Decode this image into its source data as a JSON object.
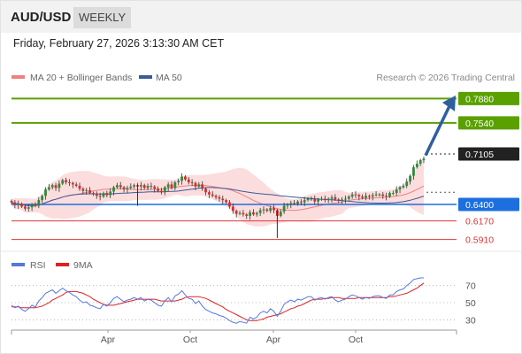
{
  "header": {
    "symbol": "AUD/USD",
    "period": "WEEKLY"
  },
  "datetime": "Friday, February 27, 2026 3:13:30 AM CET",
  "legend": {
    "bollinger_label": "MA 20 + Bollinger Bands",
    "ma50_label": "MA 50",
    "bollinger_color": "#f08080",
    "ma50_color": "#3a5a9a"
  },
  "source": "Research © 2026 Trading Central",
  "rsi_legend": {
    "rsi_label": "RSI",
    "ma_label": "9MA",
    "rsi_color": "#5577dd",
    "ma_color": "#dd2222"
  },
  "chart_data": [
    {
      "type": "candlestick",
      "y_range": [
        0.588,
        0.791
      ],
      "x_tick_labels": [
        "Apr",
        "Oct",
        "Apr",
        "Oct"
      ],
      "close_series": [
        0.643,
        0.639,
        0.641,
        0.637,
        0.634,
        0.636,
        0.64,
        0.638,
        0.646,
        0.652,
        0.661,
        0.664,
        0.667,
        0.663,
        0.669,
        0.674,
        0.671,
        0.67,
        0.668,
        0.666,
        0.662,
        0.659,
        0.66,
        0.656,
        0.655,
        0.652,
        0.651,
        0.656,
        0.653,
        0.658,
        0.664,
        0.667,
        0.664,
        0.661,
        0.663,
        0.665,
        0.667,
        0.665,
        0.667,
        0.663,
        0.666,
        0.665,
        0.662,
        0.659,
        0.657,
        0.664,
        0.668,
        0.663,
        0.671,
        0.673,
        0.679,
        0.675,
        0.671,
        0.67,
        0.665,
        0.668,
        0.662,
        0.657,
        0.654,
        0.652,
        0.65,
        0.648,
        0.646,
        0.643,
        0.637,
        0.631,
        0.627,
        0.628,
        0.626,
        0.624,
        0.629,
        0.626,
        0.628,
        0.632,
        0.633,
        0.631,
        0.635,
        0.632,
        0.624,
        0.63,
        0.638,
        0.64,
        0.642,
        0.641,
        0.644,
        0.643,
        0.646,
        0.648,
        0.648,
        0.644,
        0.647,
        0.648,
        0.646,
        0.648,
        0.65,
        0.647,
        0.645,
        0.647,
        0.648,
        0.651,
        0.654,
        0.653,
        0.651,
        0.649,
        0.652,
        0.651,
        0.653,
        0.654,
        0.654,
        0.652,
        0.651,
        0.656,
        0.656,
        0.661,
        0.664,
        0.666,
        0.672,
        0.68,
        0.692,
        0.697,
        0.702,
        0.704
      ],
      "levels": [
        {
          "label": "0.7880",
          "value": 0.788,
          "kind": "resistance",
          "color": "#5aa000"
        },
        {
          "label": "0.7540",
          "value": 0.754,
          "kind": "resistance",
          "color": "#5aa000"
        },
        {
          "label": "0.7105",
          "value": 0.7105,
          "kind": "last",
          "color": "#222222"
        },
        {
          "label": "0.6400",
          "value": 0.64,
          "kind": "pivot",
          "color": "#1d6fe0"
        },
        {
          "label": "0.6170",
          "value": 0.617,
          "kind": "support",
          "color": "#e03535"
        },
        {
          "label": "0.5910",
          "value": 0.591,
          "kind": "support",
          "color": "#e03535"
        }
      ]
    },
    {
      "type": "line",
      "series": [
        {
          "name": "RSI",
          "values": [
            47,
            44,
            46,
            42,
            40,
            43,
            47,
            45,
            52,
            56,
            61,
            63,
            65,
            61,
            64,
            67,
            64,
            62,
            59,
            57,
            53,
            50,
            51,
            47,
            46,
            44,
            43,
            48,
            46,
            50,
            55,
            57,
            54,
            51,
            53,
            54,
            56,
            54,
            56,
            52,
            54,
            53,
            50,
            47,
            46,
            52,
            56,
            51,
            58,
            60,
            64,
            59,
            55,
            54,
            49,
            52,
            46,
            42,
            40,
            38,
            37,
            35,
            34,
            32,
            29,
            27,
            26,
            28,
            27,
            26,
            33,
            31,
            33,
            38,
            40,
            38,
            43,
            40,
            34,
            40,
            48,
            51,
            53,
            51,
            54,
            53,
            55,
            57,
            57,
            53,
            55,
            56,
            54,
            56,
            57,
            53,
            51,
            53,
            54,
            57,
            59,
            58,
            56,
            54,
            56,
            55,
            57,
            58,
            58,
            56,
            55,
            59,
            59,
            63,
            65,
            66,
            70,
            73,
            77,
            78,
            79,
            79
          ]
        },
        {
          "name": "9MA",
          "values": [
            45,
            45,
            45,
            44,
            44,
            44,
            44,
            44,
            45,
            46,
            48,
            50,
            53,
            55,
            57,
            59,
            62,
            63,
            63,
            63,
            62,
            61,
            59,
            57,
            54,
            52,
            50,
            48,
            47,
            47,
            47,
            48,
            49,
            50,
            51,
            52,
            53,
            54,
            54,
            54,
            54,
            54,
            54,
            53,
            52,
            52,
            52,
            52,
            52,
            53,
            54,
            56,
            57,
            57,
            57,
            57,
            56,
            55,
            53,
            51,
            49,
            47,
            45,
            42,
            40,
            38,
            36,
            34,
            32,
            30,
            29,
            29,
            29,
            30,
            31,
            33,
            34,
            35,
            36,
            37,
            39,
            41,
            43,
            44,
            46,
            47,
            49,
            51,
            53,
            54,
            54,
            54,
            55,
            55,
            56,
            56,
            56,
            55,
            55,
            55,
            55,
            55,
            56,
            56,
            56,
            56,
            56,
            56,
            56,
            56,
            56,
            57,
            57,
            58,
            59,
            60,
            61,
            63,
            65,
            67,
            70,
            73
          ]
        }
      ],
      "y_range": [
        20,
        80
      ],
      "y_tick_labels": [
        "70",
        "50",
        "30"
      ],
      "x_tick_labels": [
        "Apr",
        "Oct",
        "Apr",
        "Oct"
      ]
    }
  ]
}
